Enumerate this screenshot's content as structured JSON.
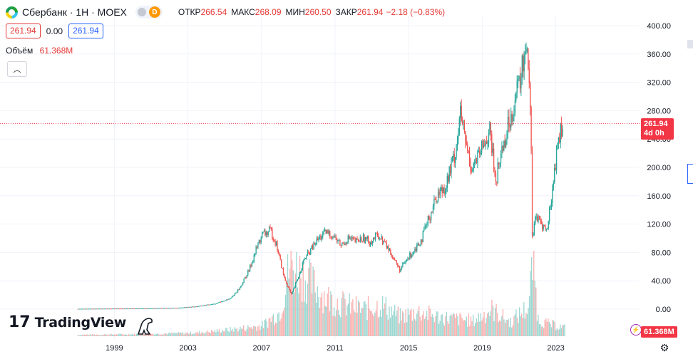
{
  "header": {
    "title": "Сбербанк · 1Н · MOEX",
    "status_letter": "D",
    "open_label": "ОТКР",
    "open_value": "266.54",
    "high_label": "МАКС",
    "high_value": "268.09",
    "low_label": "МИН",
    "low_value": "260.50",
    "close_label": "ЗАКР",
    "close_value": "261.94",
    "change_value": "−2.18 (−0.83%)"
  },
  "quote": {
    "sell": "261.94",
    "spread": "0.00",
    "buy": "261.94"
  },
  "volume": {
    "label": "Объём",
    "value": "61.368M"
  },
  "brand": {
    "name": "TradingView",
    "mark": "17"
  },
  "last_price_tag": {
    "price": "261.94",
    "countdown": "4d 0h"
  },
  "volume_tag": "61.368M",
  "colors": {
    "up": "#26a69a",
    "down": "#ef5350",
    "price_line": "#f23645",
    "grid": "#f0f3fa",
    "axis_text": "#131722"
  },
  "icons": {
    "logo": "sber-logo-icon",
    "collapse": "chevron-up-icon",
    "settings": "gear-icon",
    "alert": "lightning-icon",
    "mascot": "dino-icon"
  },
  "chart_data": {
    "type": "line",
    "x_tick_labels": [
      "1999",
      "2003",
      "2007",
      "2011",
      "2015",
      "2019",
      "2023"
    ],
    "y_tick_labels": [
      "0.00",
      "40.00",
      "80.00",
      "120.00",
      "160.00",
      "200.00",
      "240.00",
      "280.00",
      "320.00",
      "360.00",
      "400.00"
    ],
    "ylim": [
      0,
      400
    ],
    "xlim": [
      1995.3,
      2024.3
    ],
    "grid": true,
    "last_price": 261.94,
    "series": [
      {
        "x": [
          1997.5,
          1999,
          2001,
          2003,
          2004,
          2005,
          2005.8,
          2006.3,
          2006.8,
          2007.2,
          2007.5,
          2008.0,
          2008.3,
          2008.7,
          2009.1,
          2009.4,
          2009.8,
          2010.2,
          2010.6,
          2011.0,
          2011.4,
          2011.8,
          2012.2,
          2012.6,
          2013.0,
          2013.4,
          2013.8,
          2014.2,
          2014.6,
          2015.0,
          2015.4,
          2015.8,
          2016.2,
          2016.6,
          2017.0,
          2017.5,
          2018.0,
          2018.3,
          2018.6,
          2018.9,
          2019.3,
          2019.6,
          2019.9,
          2020.2,
          2020.5,
          2020.8,
          2021.2,
          2021.6,
          2021.9,
          2022.1,
          2022.2,
          2022.35,
          2022.7,
          2023.0,
          2023.3,
          2023.6,
          2023.9
        ],
        "values": [
          0.5,
          0.8,
          1,
          2,
          4,
          8,
          15,
          30,
          55,
          85,
          105,
          110,
          90,
          45,
          20,
          40,
          70,
          85,
          100,
          108,
          103,
          90,
          100,
          95,
          100,
          95,
          105,
          92,
          75,
          55,
          70,
          85,
          100,
          130,
          160,
          175,
          220,
          275,
          230,
          200,
          215,
          235,
          250,
          180,
          220,
          250,
          290,
          330,
          385,
          290,
          100,
          130,
          120,
          110,
          170,
          240,
          262
        ]
      }
    ],
    "volume_series": {
      "x": [
        1997.5,
        2001,
        2004,
        2006,
        2007.5,
        2008.5,
        2009.0,
        2009.5,
        2010.0,
        2011.0,
        2012.0,
        2013.0,
        2014.0,
        2015.0,
        2016.0,
        2017.0,
        2018.0,
        2019.0,
        2020.0,
        2021.0,
        2022.0,
        2022.25,
        2022.5,
        2023.0,
        2024.0
      ],
      "values": [
        2,
        3,
        5,
        10,
        15,
        35,
        100,
        95,
        80,
        55,
        45,
        38,
        45,
        28,
        35,
        28,
        25,
        22,
        38,
        20,
        42,
        115,
        25,
        18,
        12
      ]
    }
  }
}
